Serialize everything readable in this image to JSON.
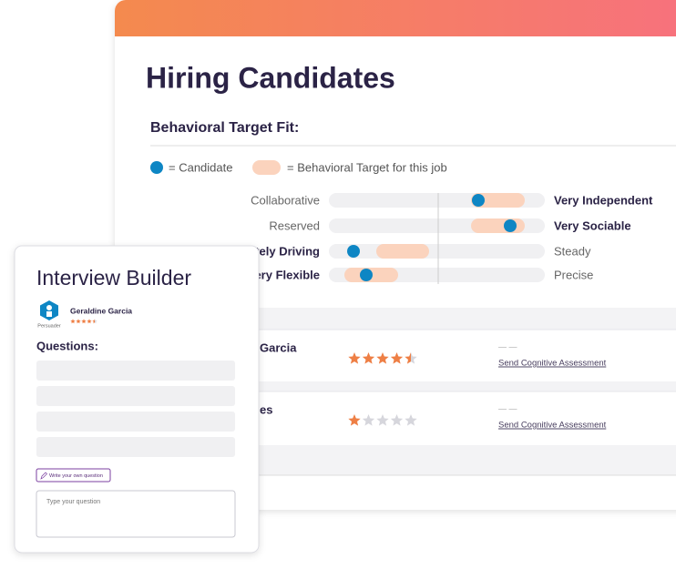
{
  "header": {
    "title": "Hiring Candidates"
  },
  "behavioral_fit": {
    "heading": "Behavioral Target Fit:",
    "legend": {
      "candidate": "= Candidate",
      "target": "= Behavioral Target for this job"
    },
    "traits": [
      {
        "left": "Collaborative",
        "right": "Very Independent",
        "emphasis": "right"
      },
      {
        "left": "Reserved",
        "right": "Very Sociable",
        "emphasis": "right"
      },
      {
        "left": "ately Driving",
        "right": "Steady",
        "emphasis": "left"
      },
      {
        "left": "Very Flexible",
        "right": "Precise",
        "emphasis": "left"
      }
    ]
  },
  "candidates": [
    {
      "name": "Garcia",
      "rating": 4.5,
      "score": "— —",
      "action": "Send Cognitive Assessment"
    },
    {
      "name": "es",
      "rating": 1,
      "score": "— —",
      "action": "Send Cognitive Assessment"
    }
  ],
  "interview_builder": {
    "title": "Interview Builder",
    "candidate": {
      "name": "Geraldine Garcia",
      "badge": "Persuader",
      "rating": 4.5
    },
    "questions_heading": "Questions:",
    "write_button": "Write your own question",
    "placeholder": "Type your question"
  }
}
